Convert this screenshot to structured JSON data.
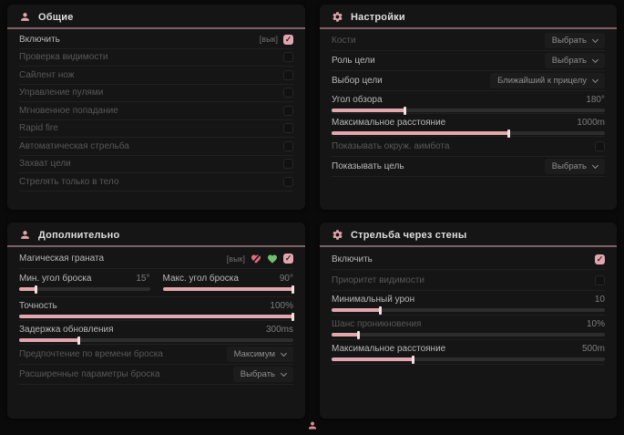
{
  "colors": {
    "background": "#0a0a0a",
    "panel": "#151515",
    "accent_pink": "#e2a6af",
    "header_underline": "#7d6166",
    "green_icon": "#6fbf6f",
    "broken_heart_icon": "#e06c7d"
  },
  "icons": {
    "general_header": "person-icon",
    "settings_header": "gear-icon",
    "additional_header": "person-icon",
    "walls_header": "gear-icon",
    "dropdowns": "chevron-down-icon",
    "grenade_off": "heart-broken-icon",
    "grenade_on": "heart-icon",
    "watermark": "person-icon"
  },
  "general": {
    "title": "Общие",
    "enable": {
      "label": "Включить",
      "tag": "[вык]",
      "checked": true
    },
    "toggles": [
      "Проверка видимости",
      "Сайлент нож",
      "Управление пулями",
      "Мгновенное попадание",
      "Rapid fire",
      "Автоматическая стрельба",
      "Захват цели",
      "Стрелять только в тело"
    ]
  },
  "settings": {
    "title": "Настройки",
    "bones": {
      "label": "Кости",
      "value": "Выбрать"
    },
    "target_role": {
      "label": "Роль цели",
      "value": "Выбрать"
    },
    "target_select": {
      "label": "Выбор цели",
      "value": "Ближайший к прицелу"
    },
    "fov": {
      "label": "Угол обзора",
      "value": "180°",
      "fill": 27
    },
    "max_distance": {
      "label": "Максимальное расстояние",
      "value": "1000m",
      "fill": 65
    },
    "show_circle": {
      "label": "Показывать окруж. аимбота",
      "checked": false
    },
    "show_target": {
      "label": "Показывать цель",
      "value": "Выбрать"
    }
  },
  "additional": {
    "title": "Дополнительно",
    "magic_grenade": {
      "label": "Магическая граната",
      "tag": "[вык]",
      "checked": true
    },
    "min_throw": {
      "label": "Мин. угол броска",
      "value": "15°",
      "fill": 13
    },
    "max_throw": {
      "label": "Макс. угол броска",
      "value": "90°",
      "fill": 100
    },
    "accuracy": {
      "label": "Точность",
      "value": "100%",
      "fill": 100
    },
    "update_delay": {
      "label": "Задержка обновления",
      "value": "300ms",
      "fill": 22
    },
    "throw_time": {
      "label": "Предпочтение по времени броска",
      "value": "Максимум"
    },
    "advanced_throw": {
      "label": "Расширенные параметры броска",
      "value": "Выбрать"
    }
  },
  "walls": {
    "title": "Стрельба через стены",
    "enable": {
      "label": "Включить",
      "checked": true
    },
    "visibility_priority": {
      "label": "Приоритет видимости",
      "checked": false
    },
    "min_damage": {
      "label": "Минимальный урон",
      "value": "10",
      "fill": 18
    },
    "penetration_chance": {
      "label": "Шанс проникновения",
      "value": "10%",
      "fill": 10
    },
    "max_distance": {
      "label": "Максимальное расстояние",
      "value": "500m",
      "fill": 30
    }
  }
}
